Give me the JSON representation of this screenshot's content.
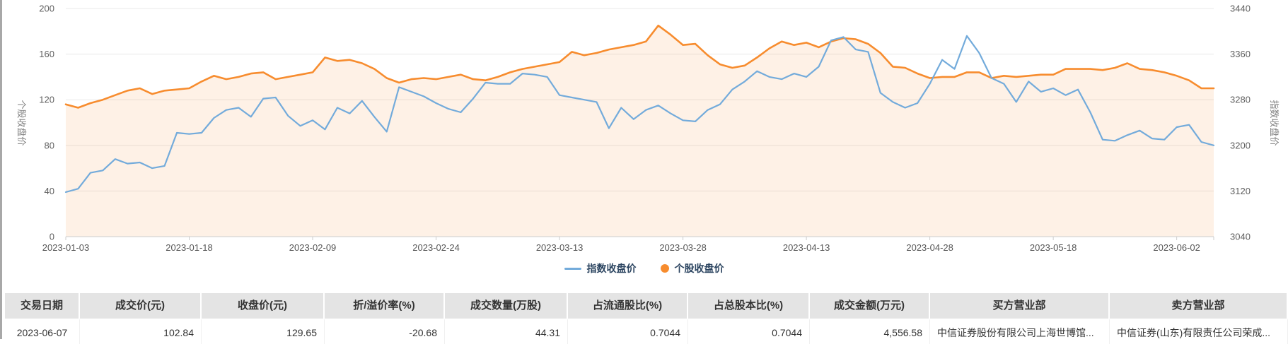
{
  "chart_data": {
    "type": "line",
    "title": "",
    "legend_position": "bottom",
    "grid": true,
    "x_tick_labels": [
      "2023-01-03",
      "2023-01-18",
      "2023-02-09",
      "2023-02-24",
      "2023-03-13",
      "2023-03-28",
      "2023-04-13",
      "2023-04-28",
      "2023-05-18",
      "2023-06-02"
    ],
    "x_tick_indices": [
      0,
      10,
      20,
      30,
      40,
      50,
      60,
      70,
      80,
      90
    ],
    "left_axis": {
      "name": "个股收盘价",
      "min": 0,
      "max": 200,
      "ticks": [
        0,
        40,
        80,
        120,
        160,
        200
      ]
    },
    "right_axis": {
      "name": "指数收盘价",
      "min": 3040,
      "max": 3440,
      "ticks": [
        3040,
        3120,
        3200,
        3280,
        3360,
        3440
      ]
    },
    "series": [
      {
        "name": "指数收盘价",
        "axis": "right",
        "style": "line",
        "color": "#73abdb",
        "values": [
          3118,
          3124,
          3152,
          3156,
          3176,
          3168,
          3170,
          3160,
          3164,
          3222,
          3220,
          3222,
          3248,
          3262,
          3266,
          3250,
          3282,
          3284,
          3252,
          3234,
          3244,
          3228,
          3266,
          3256,
          3278,
          3250,
          3224,
          3302,
          3294,
          3286,
          3274,
          3264,
          3258,
          3282,
          3310,
          3308,
          3308,
          3326,
          3324,
          3320,
          3288,
          3284,
          3280,
          3276,
          3230,
          3266,
          3246,
          3262,
          3270,
          3256,
          3244,
          3242,
          3262,
          3272,
          3298,
          3312,
          3330,
          3320,
          3316,
          3326,
          3320,
          3338,
          3384,
          3390,
          3368,
          3364,
          3292,
          3276,
          3266,
          3274,
          3308,
          3350,
          3334,
          3392,
          3362,
          3318,
          3308,
          3276,
          3312,
          3294,
          3300,
          3288,
          3298,
          3258,
          3210,
          3208,
          3218,
          3226,
          3212,
          3210,
          3232,
          3236,
          3206,
          3200
        ]
      },
      {
        "name": "个股收盘价",
        "axis": "left",
        "style": "line-area",
        "color": "#f78c2e",
        "values": [
          116,
          113,
          117,
          120,
          124,
          128,
          130,
          125,
          128,
          129,
          130,
          136,
          141,
          138,
          140,
          143,
          144,
          138,
          140,
          142,
          144,
          157,
          154,
          155,
          152,
          147,
          139,
          135,
          138,
          139,
          138,
          140,
          142,
          138,
          137,
          140,
          144,
          147,
          149,
          151,
          153,
          162,
          159,
          161,
          164,
          166,
          168,
          171,
          185,
          177,
          168,
          169,
          159,
          151,
          148,
          150,
          157,
          165,
          171,
          168,
          170,
          166,
          171,
          174,
          173,
          169,
          161,
          149,
          148,
          143,
          139,
          140,
          140,
          144,
          144,
          139,
          141,
          140,
          141,
          142,
          142,
          147,
          147,
          147,
          146,
          148,
          152,
          147,
          146,
          144,
          141,
          137,
          130,
          130
        ]
      }
    ]
  },
  "colors": {
    "index_line": "#73abdb",
    "stock_line": "#f78c2e",
    "area_fill": "#f78c2e",
    "area_fill_opacity": 0.12,
    "gridline": "#e9e9e9",
    "axis": "#cccccc",
    "tick_label": "#606060",
    "axis_name": "#808080",
    "legend_text": "#2b4460",
    "table_header_bg": "#e4e4e4"
  },
  "table": {
    "columns": [
      "交易日期",
      "成交价(元)",
      "收盘价(元)",
      "折/溢价率(%)",
      "成交数量(万股)",
      "占流通股比(%)",
      "占总股本比(%)",
      "成交金额(万元)",
      "买方营业部",
      "卖方营业部"
    ],
    "rows": [
      [
        "2023-06-07",
        "102.84",
        "129.65",
        "-20.68",
        "44.31",
        "0.7044",
        "0.7044",
        "4,556.58",
        "中信证券股份有限公司上海世博馆...",
        "中信证券(山东)有限责任公司荣成..."
      ]
    ]
  }
}
